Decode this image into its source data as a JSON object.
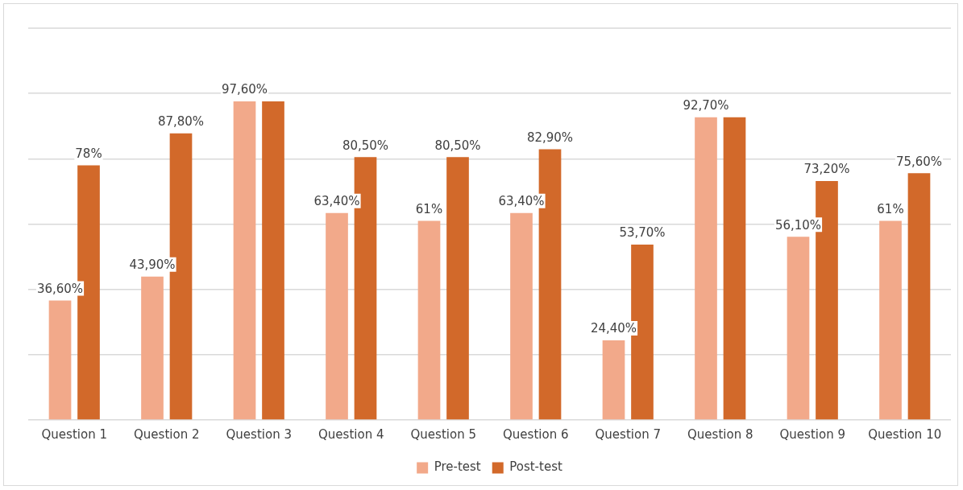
{
  "chart_data": {
    "type": "bar",
    "categories": [
      "Question 1",
      "Question 2",
      "Question 3",
      "Question 4",
      "Question 5",
      "Question 6",
      "Question 7",
      "Question 8",
      "Question 9",
      "Question 10"
    ],
    "series": [
      {
        "name": "Pre-test",
        "color": "#f2a98a",
        "values": [
          36.6,
          43.9,
          97.6,
          63.4,
          61,
          63.4,
          24.4,
          92.7,
          56.1,
          61
        ],
        "value_labels": [
          "36,60%",
          "43,90%",
          "97,60%",
          "63,40%",
          "61%",
          "63,40%",
          "24,40%",
          "92,70%",
          "56,10%",
          "61%"
        ]
      },
      {
        "name": "Post-test",
        "color": "#d2692a",
        "values": [
          78,
          87.8,
          97.6,
          80.5,
          80.5,
          82.9,
          53.7,
          92.7,
          73.2,
          75.6
        ],
        "value_labels": [
          "78%",
          "87,80%",
          null,
          "80,50%",
          "80,50%",
          "82,90%",
          "53,70%",
          null,
          "73,20%",
          "75,60%"
        ]
      }
    ],
    "ylim": [
      0,
      120
    ],
    "yticks": [
      {
        "value": 0,
        "label": null
      },
      {
        "value": 20,
        "label": null
      },
      {
        "value": 40,
        "label": null
      },
      {
        "value": 60,
        "label": null
      },
      {
        "value": 80,
        "label": null
      },
      {
        "value": 100,
        "label": null
      }
    ],
    "tick_labels": "x",
    "grid": "y",
    "legend": "bottom"
  }
}
